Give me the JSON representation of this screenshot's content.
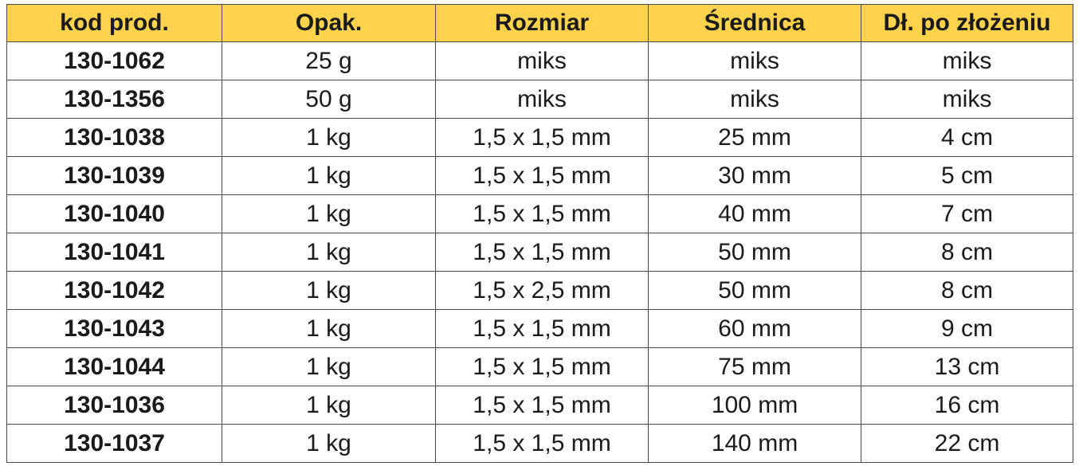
{
  "table": {
    "header": [
      "kod prod.",
      "Opak.",
      "Rozmiar",
      "Średnica",
      "Dł. po złożeniu"
    ],
    "rows": [
      [
        "130-1062",
        "25 g",
        "miks",
        "miks",
        "miks"
      ],
      [
        "130-1356",
        "50 g",
        "miks",
        "miks",
        "miks"
      ],
      [
        "130-1038",
        "1 kg",
        "1,5 x 1,5 mm",
        "25 mm",
        "4 cm"
      ],
      [
        "130-1039",
        "1 kg",
        "1,5 x 1,5 mm",
        "30 mm",
        "5 cm"
      ],
      [
        "130-1040",
        "1 kg",
        "1,5 x 1,5 mm",
        "40 mm",
        "7 cm"
      ],
      [
        "130-1041",
        "1 kg",
        "1,5 x 1,5 mm",
        "50 mm",
        "8 cm"
      ],
      [
        "130-1042",
        "1 kg",
        "1,5 x 2,5 mm",
        "50 mm",
        "8 cm"
      ],
      [
        "130-1043",
        "1 kg",
        "1,5 x 1,5 mm",
        "60 mm",
        "9 cm"
      ],
      [
        "130-1044",
        "1 kg",
        "1,5 x 1,5 mm",
        "75 mm",
        "13 cm"
      ],
      [
        "130-1036",
        "1 kg",
        "1,5 x 1,5 mm",
        "100 mm",
        "16 cm"
      ],
      [
        "130-1037",
        "1 kg",
        "1,5 x 1,5 mm",
        "140 mm",
        "22 cm"
      ]
    ]
  }
}
